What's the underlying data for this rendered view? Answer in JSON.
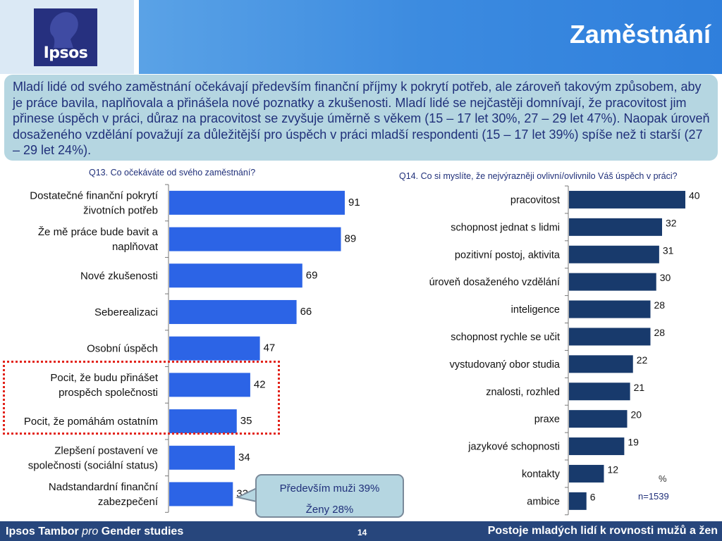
{
  "header": {
    "logo_text": "Ipsos",
    "title": "Zaměstnání"
  },
  "summary": "Mladí lidé od svého zaměstnání očekávají především finanční příjmy k pokrytí potřeb, ale zároveň takovým způsobem, aby je práce bavila, naplňovala a přinášela nové poznatky a zkušenosti. Mladí lidé se nejčastěji domnívají, že pracovitost jim přinese úspěch v práci, důraz na pracovitost se zvyšuje úměrně s věkem (15 – 17 let 30%, 27 – 29 let 47%). Naopak úroveň dosaženého vzdělání považují za důležitější pro úspěch v práci mladší respondenti (15 – 17 let 39%) spíše než ti starší (27 – 29 let 24%).",
  "colors": {
    "bar_left": "#2c64e6",
    "bar_right": "#183a6c",
    "highlight": "#e2231a",
    "footer_bg": "#27467c"
  },
  "chart_data": [
    {
      "type": "bar",
      "orientation": "horizontal",
      "title": "Q13. Co očekáváte od svého zaměstnání?",
      "categories": [
        [
          "Dostatečné finanční pokrytí",
          "životních potřeb"
        ],
        [
          "Že mě práce bude bavit a",
          "naplňovat"
        ],
        [
          "Nové zkušenosti"
        ],
        [
          "Seberealizaci"
        ],
        [
          "Osobní úspěch"
        ],
        [
          "Pocit, že budu přinášet",
          "prospěch společnosti"
        ],
        [
          "Pocit, že pomáhám ostatním"
        ],
        [
          "Zlepšení postavení ve",
          "společnosti (sociální status)"
        ],
        [
          "Nadstandardní finanční",
          "zabezpečení"
        ]
      ],
      "values": [
        91,
        89,
        69,
        66,
        47,
        42,
        35,
        34,
        33
      ],
      "xlim": [
        0,
        100
      ]
    },
    {
      "type": "bar",
      "orientation": "horizontal",
      "title": "Q14. Co si myslíte, že nejvýrazněji ovlivní/ovlivnilo Váš úspěch v práci?",
      "categories": [
        "pracovitost",
        "schopnost jednat s lidmi",
        "pozitivní postoj, aktivita",
        "úroveň dosaženého vzdělání",
        "inteligence",
        "schopnost rychle se učit",
        "vystudovaný obor studia",
        "znalosti, rozhled",
        "praxe",
        "jazykové schopnosti",
        "kontakty",
        "ambice"
      ],
      "values": [
        40,
        32,
        31,
        30,
        28,
        28,
        22,
        21,
        20,
        19,
        12,
        6
      ],
      "xlim": [
        0,
        40
      ]
    }
  ],
  "callout": {
    "line1": "Především muži 39%",
    "line2": "Ženy 28%"
  },
  "notes": {
    "unit": "%",
    "sample": "n=1539"
  },
  "footer": {
    "left_pre": "Ipsos Tambor ",
    "left_pro": "pro",
    "left_post": " Gender studies",
    "page": "14",
    "right": "Postoje mladých lidí k rovnosti mužů a žen"
  }
}
